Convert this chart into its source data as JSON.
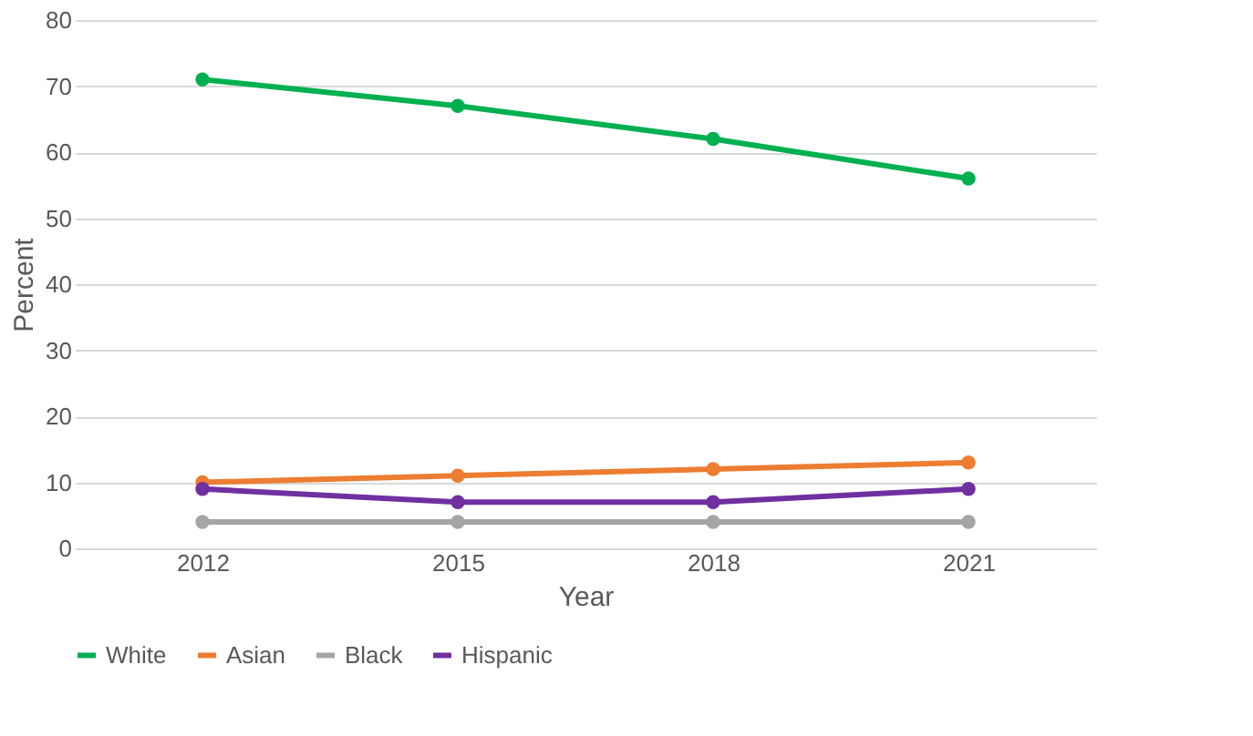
{
  "chart_data": {
    "type": "line",
    "xlabel": "Year",
    "ylabel": "Percent",
    "categories": [
      "2012",
      "2015",
      "2018",
      "2021"
    ],
    "series": [
      {
        "name": "White",
        "color": "#00b050",
        "values": [
          71,
          67,
          62,
          56
        ]
      },
      {
        "name": "Asian",
        "color": "#ed7d31",
        "values": [
          10,
          11,
          12,
          13
        ]
      },
      {
        "name": "Black",
        "color": "#a5a5a5",
        "values": [
          4,
          4,
          4,
          4
        ]
      },
      {
        "name": "Hispanic",
        "color": "#7030a0",
        "values": [
          9,
          7,
          7,
          9
        ]
      }
    ],
    "ylim": [
      0,
      80
    ],
    "yticks": [
      0,
      10,
      20,
      30,
      40,
      50,
      60,
      70,
      80
    ],
    "grid": "y",
    "legend": "bottom",
    "marker": "circle",
    "line_style": "solid"
  }
}
